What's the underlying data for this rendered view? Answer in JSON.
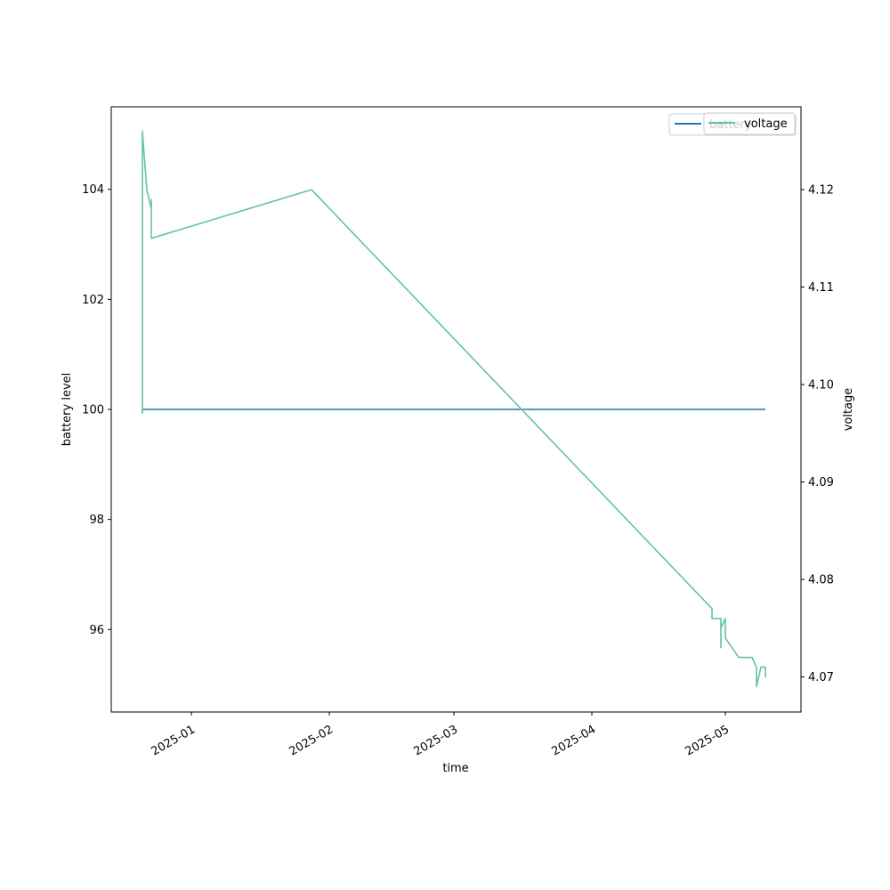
{
  "chart_data": {
    "type": "line",
    "xlabel": "time",
    "x_tick_labels": [
      "2025-01",
      "2025-02",
      "2025-03",
      "2025-04",
      "2025-05"
    ],
    "x_ticks": [
      "2025-01-01",
      "2025-02-01",
      "2025-03-01",
      "2025-04-01",
      "2025-05-01"
    ],
    "xlim": [
      "2024-12-14",
      "2025-05-18"
    ],
    "left_axis": {
      "label": "battery level",
      "ylim": [
        94.5,
        105.5
      ],
      "ticks": [
        96,
        98,
        100,
        102,
        104
      ]
    },
    "right_axis": {
      "label": "voltage",
      "ylim": [
        4.0664,
        4.1285
      ],
      "ticks": [
        4.07,
        4.08,
        4.09,
        4.1,
        4.11,
        4.12
      ]
    },
    "series": [
      {
        "name": "battery",
        "axis": "left",
        "color": "#1f77b4",
        "x": [
          "2024-12-21",
          "2025-05-10"
        ],
        "values": [
          100,
          100
        ]
      },
      {
        "name": "voltage",
        "axis": "right",
        "color": "#66c2a5",
        "x": [
          "2024-12-21",
          "2024-12-21",
          "2024-12-21",
          "2024-12-21",
          "2024-12-21",
          "2024-12-22",
          "2024-12-22",
          "2024-12-23",
          "2024-12-23",
          "2024-12-23",
          "2024-12-23",
          "2024-12-23",
          "2025-01-28",
          "2025-04-28",
          "2025-04-28",
          "2025-04-30",
          "2025-04-30",
          "2025-04-30",
          "2025-05-01",
          "2025-05-01",
          "2025-05-01",
          "2025-05-01",
          "2025-05-04",
          "2025-05-07",
          "2025-05-08",
          "2025-05-08",
          "2025-05-09",
          "2025-05-09",
          "2025-05-10",
          "2025-05-10",
          "2025-05-10",
          "2025-05-10"
        ],
        "values": [
          4.097,
          4.099,
          4.126,
          4.123,
          4.126,
          4.12,
          4.12,
          4.118,
          4.119,
          4.117,
          4.116,
          4.115,
          4.12,
          4.077,
          4.076,
          4.076,
          4.073,
          4.075,
          4.076,
          4.074,
          4.075,
          4.074,
          4.072,
          4.072,
          4.071,
          4.069,
          4.071,
          4.071,
          4.071,
          4.07,
          4.071,
          4.07
        ]
      }
    ],
    "legend": {
      "placement": "top-right",
      "entries": [
        "battery",
        "voltage"
      ]
    },
    "grid": false
  }
}
